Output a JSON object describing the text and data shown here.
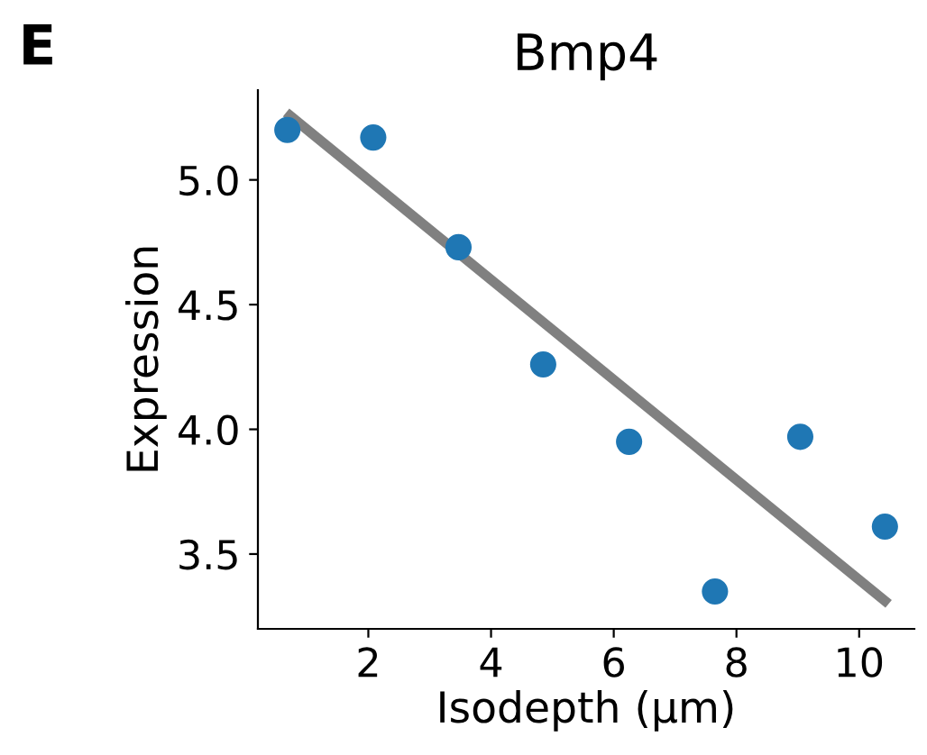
{
  "chart_data": {
    "type": "scatter",
    "title": "Bmp4",
    "xlabel": "Isodepth (µm)",
    "ylabel": "Expression",
    "annotations": [
      "E"
    ],
    "series": [
      {
        "marker": "circle",
        "color": "#1f77b4",
        "x": [
          0.68,
          2.08,
          3.47,
          4.85,
          6.25,
          7.65,
          9.04,
          10.42
        ],
        "values": [
          5.2,
          5.17,
          4.73,
          4.26,
          3.95,
          3.35,
          3.97,
          3.61
        ]
      },
      {
        "type": "line",
        "marker": "none",
        "color": "#808080",
        "x": [
          0.66,
          10.48
        ],
        "values": [
          5.27,
          3.3
        ]
      }
    ],
    "xlim": [
      0.2,
      10.9
    ],
    "ylim": [
      3.2,
      5.36
    ],
    "xticks": [
      2,
      4,
      6,
      8,
      10
    ],
    "yticks": [
      3.5,
      {
        "value": 4,
        "label": "4.0"
      },
      4.5,
      {
        "value": 5,
        "label": "5.0"
      }
    ],
    "grid": false,
    "legend": false
  }
}
